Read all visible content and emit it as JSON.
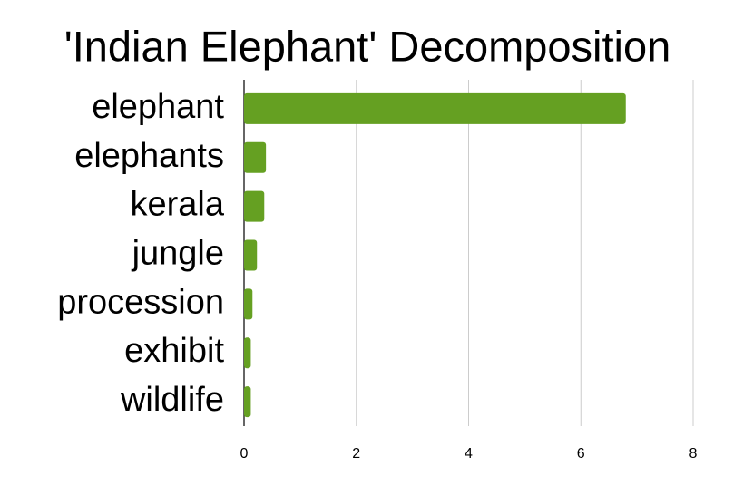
{
  "chart_data": {
    "type": "bar",
    "orientation": "horizontal",
    "title": "'Indian Elephant' Decomposition",
    "categories": [
      "elephant",
      "elephants",
      "kerala",
      "jungle",
      "procession",
      "exhibit",
      "wildlife"
    ],
    "values": [
      6.8,
      0.39,
      0.36,
      0.23,
      0.15,
      0.12,
      0.12
    ],
    "color": "#65a022",
    "xlim": [
      0,
      8
    ],
    "xticks": [
      0,
      2,
      4,
      6,
      8
    ],
    "grid": true
  }
}
